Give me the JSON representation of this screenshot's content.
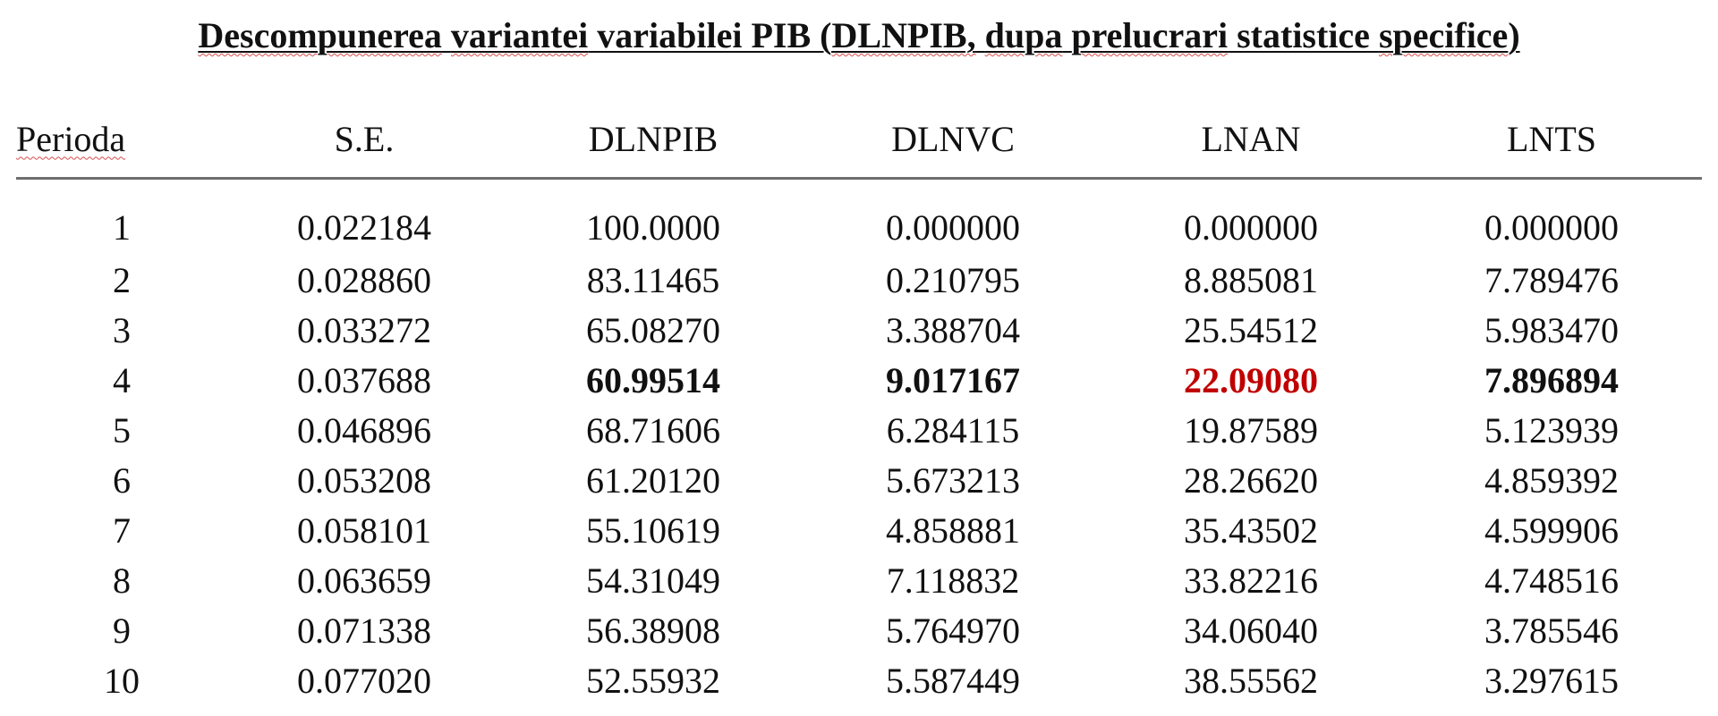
{
  "title": {
    "w1": "Descompunerea",
    "s1": " ",
    "w2": "variantei",
    "s2": " variabilei PIB (",
    "w3": "DLNPIB,",
    "s3": " ",
    "w4": "dupa",
    "s4": " ",
    "w5": "prelucrari",
    "s5": " statistice ",
    "w6": "specifice",
    "s6": ")"
  },
  "table": {
    "columns": [
      "Perioda",
      "S.E.",
      "DLNPIB",
      "DLNVC",
      "LNAN",
      "LNTS"
    ],
    "rows": [
      [
        "1",
        "0.022184",
        "100.0000",
        "0.000000",
        "0.000000",
        "0.000000"
      ],
      [
        "2",
        "0.028860",
        "83.11465",
        "0.210795",
        "8.885081",
        "7.789476"
      ],
      [
        "3",
        "0.033272",
        "65.08270",
        "3.388704",
        "25.54512",
        "5.983470"
      ],
      [
        "4",
        "0.037688",
        "60.99514",
        "9.017167",
        "22.09080",
        "7.896894"
      ],
      [
        "5",
        "0.046896",
        "68.71606",
        "6.284115",
        "19.87589",
        "5.123939"
      ],
      [
        "6",
        "0.053208",
        "61.20120",
        "5.673213",
        "28.26620",
        "4.859392"
      ],
      [
        "7",
        "0.058101",
        "55.10619",
        "4.858881",
        "35.43502",
        "4.599906"
      ],
      [
        "8",
        "0.063659",
        "54.31049",
        "7.118832",
        "33.82216",
        "4.748516"
      ],
      [
        "9",
        "0.071338",
        "56.38908",
        "5.764970",
        "34.06040",
        "3.785546"
      ],
      [
        "10",
        "0.077020",
        "52.55932",
        "5.587449",
        "38.55562",
        "3.297615"
      ]
    ]
  },
  "highlight_color": "#c00000"
}
